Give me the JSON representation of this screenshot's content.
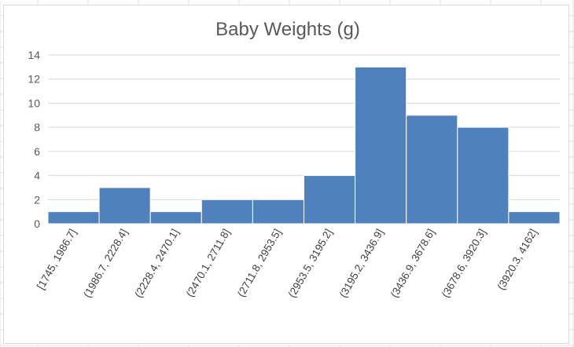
{
  "chart_data": {
    "type": "bar",
    "title": "Baby Weights (g)",
    "xlabel": "",
    "ylabel": "",
    "categories": [
      "[1745, 1986.7]",
      "(1986.7, 2228.4]",
      "(2228.4, 2470.1]",
      "(2470.1, 2711.8]",
      "(2711.8, 2953.5]",
      "(2953.5, 3195.2]",
      "(3195.2, 3436.9]",
      "(3436.9, 3678.6]",
      "(3678.6, 3920.3]",
      "(3920.3, 4162]"
    ],
    "values": [
      1,
      3,
      1,
      2,
      2,
      4,
      13,
      9,
      8,
      1
    ],
    "ylim": [
      0,
      14
    ],
    "yticks": [
      0,
      2,
      4,
      6,
      8,
      10,
      12,
      14
    ],
    "grid": true,
    "legend": "none",
    "bar_color": "#4f81bd",
    "gridline_color": "#d9d9d9"
  }
}
